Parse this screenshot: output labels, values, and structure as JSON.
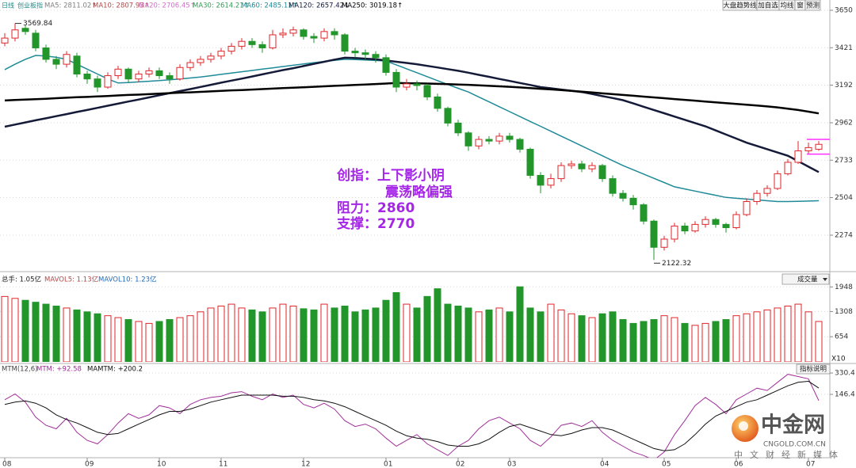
{
  "chart_data": [
    {
      "type": "candlestick",
      "period": "日线",
      "title": "创业板指",
      "series": [
        {
          "name": "MA5: 2811.02↑",
          "color": "#808080"
        },
        {
          "name": "MA10: 2807.93↑",
          "color": "#b04a4a"
        },
        {
          "name": "MA20: 2706.45↑",
          "color": "#d070c8"
        },
        {
          "name": "MA30: 2614.21↑",
          "color": "#3a9a5a"
        },
        {
          "name": "MA60: 2485.11↑",
          "color": "#1f8a98",
          "line_width": 1.5,
          "values": [
            3287,
            3320,
            3350,
            3374,
            3370,
            3362,
            3350,
            3320,
            3290,
            3260,
            3230,
            3205,
            3208,
            3212,
            3216,
            3220,
            3225,
            3230,
            3236,
            3242,
            3250,
            3258,
            3266,
            3274,
            3282,
            3290,
            3298,
            3306,
            3314,
            3322,
            3330,
            3337,
            3344,
            3350,
            3348,
            3346,
            3343,
            3340,
            3316,
            3292,
            3268,
            3244,
            3220,
            3196,
            3173,
            3150,
            3120,
            3090,
            3060,
            3030,
            3000,
            2970,
            2940,
            2910,
            2880,
            2850,
            2820,
            2790,
            2760,
            2730,
            2700,
            2674,
            2648,
            2622,
            2596,
            2570,
            2557,
            2544,
            2531,
            2518,
            2505,
            2500,
            2495,
            2490,
            2485,
            2480,
            2480,
            2481,
            2483,
            2485
          ]
        },
        {
          "name": "MA120: 2657.42↓",
          "color": "#141a38",
          "line_width": 2.5,
          "values": [
            2938,
            2951,
            2964,
            2977,
            2989,
            3002,
            3015,
            3028,
            3040,
            3053,
            3066,
            3079,
            3092,
            3104,
            3117,
            3130,
            3143,
            3156,
            3168,
            3181,
            3194,
            3207,
            3220,
            3232,
            3245,
            3258,
            3271,
            3284,
            3296,
            3309,
            3322,
            3335,
            3348,
            3360,
            3358,
            3354,
            3350,
            3343,
            3335,
            3328,
            3320,
            3310,
            3300,
            3290,
            3280,
            3268,
            3255,
            3243,
            3230,
            3218,
            3205,
            3193,
            3180,
            3173,
            3165,
            3158,
            3150,
            3138,
            3125,
            3113,
            3100,
            3080,
            3060,
            3040,
            3020,
            3000,
            2980,
            2960,
            2940,
            2915,
            2890,
            2865,
            2840,
            2820,
            2800,
            2780,
            2760,
            2727,
            2693,
            2660
          ]
        },
        {
          "name": "MA250: 3019.18↑",
          "color": "#000000",
          "line_width": 2.5,
          "values": [
            3098,
            3101,
            3104,
            3106,
            3109,
            3112,
            3115,
            3118,
            3120,
            3123,
            3126,
            3129,
            3132,
            3134,
            3137,
            3140,
            3143,
            3146,
            3148,
            3151,
            3154,
            3157,
            3160,
            3162,
            3165,
            3168,
            3171,
            3174,
            3176,
            3179,
            3182,
            3185,
            3188,
            3190,
            3193,
            3196,
            3199,
            3202,
            3205,
            3204,
            3203,
            3202,
            3200,
            3198,
            3196,
            3194,
            3191,
            3188,
            3185,
            3182,
            3178,
            3174,
            3170,
            3166,
            3162,
            3157,
            3152,
            3147,
            3142,
            3137,
            3132,
            3127,
            3122,
            3117,
            3112,
            3107,
            3102,
            3097,
            3092,
            3087,
            3082,
            3077,
            3072,
            3067,
            3062,
            3056,
            3048,
            3040,
            3030,
            3019
          ]
        }
      ],
      "categories": [
        "08",
        null,
        null,
        null,
        null,
        null,
        null,
        null,
        "09",
        null,
        null,
        null,
        null,
        null,
        null,
        "10",
        null,
        null,
        null,
        null,
        null,
        "11",
        null,
        null,
        null,
        null,
        null,
        null,
        null,
        "12",
        null,
        null,
        null,
        null,
        null,
        null,
        null,
        "01",
        null,
        null,
        null,
        null,
        null,
        null,
        "02",
        null,
        null,
        null,
        null,
        "03",
        null,
        null,
        null,
        null,
        null,
        null,
        null,
        null,
        "04",
        null,
        null,
        null,
        null,
        null,
        "05",
        null,
        null,
        null,
        null,
        null,
        null,
        "06",
        null,
        null,
        null,
        null,
        null,
        null,
        "07",
        null
      ],
      "open": [
        3450,
        3480,
        3540,
        3510,
        3420,
        3350,
        3320,
        3370,
        3260,
        3230,
        3180,
        3250,
        3290,
        3230,
        3260,
        3280,
        3250,
        3230,
        3300,
        3330,
        3350,
        3370,
        3400,
        3430,
        3460,
        3440,
        3420,
        3500,
        3510,
        3530,
        3490,
        3480,
        3520,
        3500,
        3400,
        3390,
        3380,
        3360,
        3270,
        3180,
        3200,
        3190,
        3120,
        3050,
        2960,
        2900,
        2820,
        2860,
        2850,
        2880,
        2860,
        2800,
        2640,
        2580,
        2620,
        2700,
        2710,
        2680,
        2700,
        2620,
        2530,
        2500,
        2460,
        2360,
        2200,
        2250,
        2330,
        2300,
        2340,
        2370,
        2340,
        2320,
        2400,
        2480,
        2530,
        2560,
        2650,
        2720,
        2790,
        2800
      ],
      "high": [
        3510,
        3569.84,
        3560,
        3530,
        3440,
        3370,
        3400,
        3390,
        3280,
        3250,
        3270,
        3310,
        3300,
        3280,
        3300,
        3300,
        3270,
        3320,
        3350,
        3370,
        3390,
        3420,
        3450,
        3480,
        3480,
        3460,
        3530,
        3540,
        3550,
        3540,
        3510,
        3540,
        3540,
        3510,
        3420,
        3410,
        3400,
        3380,
        3290,
        3230,
        3220,
        3200,
        3140,
        3060,
        2980,
        2910,
        2880,
        2880,
        2900,
        2900,
        2870,
        2810,
        2660,
        2650,
        2720,
        2730,
        2730,
        2720,
        2710,
        2640,
        2550,
        2520,
        2470,
        2370,
        2270,
        2350,
        2350,
        2360,
        2390,
        2380,
        2350,
        2420,
        2500,
        2550,
        2580,
        2670,
        2740,
        2850,
        2840,
        2850
      ],
      "low": [
        3430,
        3460,
        3500,
        3400,
        3330,
        3290,
        3300,
        3240,
        3200,
        3150,
        3170,
        3230,
        3210,
        3210,
        3240,
        3230,
        3200,
        3220,
        3280,
        3310,
        3330,
        3350,
        3380,
        3410,
        3420,
        3390,
        3410,
        3480,
        3490,
        3470,
        3450,
        3460,
        3470,
        3380,
        3360,
        3350,
        3330,
        3250,
        3150,
        3160,
        3160,
        3100,
        3030,
        2940,
        2880,
        2790,
        2800,
        2830,
        2830,
        2840,
        2780,
        2620,
        2530,
        2560,
        2600,
        2680,
        2660,
        2660,
        2600,
        2510,
        2480,
        2430,
        2340,
        2122.32,
        2180,
        2230,
        2280,
        2290,
        2320,
        2320,
        2290,
        2310,
        2390,
        2460,
        2510,
        2550,
        2640,
        2710,
        2770,
        2790
      ],
      "close": [
        3480,
        3530,
        3520,
        3420,
        3350,
        3320,
        3380,
        3260,
        3230,
        3180,
        3250,
        3290,
        3230,
        3260,
        3280,
        3250,
        3230,
        3300,
        3330,
        3350,
        3370,
        3400,
        3430,
        3460,
        3440,
        3420,
        3500,
        3510,
        3530,
        3490,
        3480,
        3520,
        3500,
        3400,
        3390,
        3380,
        3360,
        3270,
        3180,
        3200,
        3190,
        3120,
        3050,
        2960,
        2900,
        2820,
        2860,
        2850,
        2880,
        2860,
        2800,
        2640,
        2580,
        2620,
        2700,
        2710,
        2680,
        2700,
        2620,
        2530,
        2500,
        2460,
        2360,
        2200,
        2250,
        2330,
        2300,
        2340,
        2370,
        2340,
        2320,
        2400,
        2480,
        2530,
        2560,
        2650,
        2720,
        2790,
        2810,
        2830
      ],
      "extreme_labels": {
        "high": "3569.84",
        "low": "2122.32"
      },
      "up_color": "#e0262a",
      "down_color": "#22962a",
      "ylim": [
        2056,
        3713
      ],
      "yticks": [
        2274,
        2504,
        2733,
        2962,
        3192,
        3421,
        3650
      ],
      "grid": true,
      "commentary": [
        "创指：上下影小阴",
        "震荡略偏强"
      ],
      "levels": [
        {
          "label": "阻力：2860",
          "value": 2860
        },
        {
          "label": "支撑：2770",
          "value": 2770
        }
      ],
      "commentary_color": "#a626e8",
      "level_color": "#ff30ff",
      "buttons": [
        "大盘趋势线",
        "加自选",
        "均线",
        "窗",
        "预测"
      ]
    },
    {
      "type": "bar",
      "header": [
        "总手: 1.05亿",
        "MAVOL5: 1.13亿",
        "MAVOL10: 1.23亿"
      ],
      "indicator": "成交量",
      "unit_label": "X10",
      "values": [
        1700,
        1650,
        1600,
        1550,
        1500,
        1450,
        1400,
        1350,
        1300,
        1250,
        1200,
        1150,
        1100,
        1050,
        1000,
        1050,
        1100,
        1150,
        1200,
        1300,
        1400,
        1450,
        1500,
        1400,
        1350,
        1300,
        1400,
        1500,
        1450,
        1380,
        1350,
        1500,
        1400,
        1450,
        1300,
        1350,
        1400,
        1600,
        1800,
        1500,
        1400,
        1700,
        1900,
        1500,
        1450,
        1400,
        1300,
        1350,
        1400,
        1300,
        1950,
        1400,
        1300,
        1500,
        1350,
        1250,
        1200,
        1150,
        1250,
        1300,
        1100,
        1000,
        1050,
        1100,
        1200,
        1150,
        1000,
        950,
        1000,
        1050,
        1100,
        1200,
        1250,
        1300,
        1350,
        1400,
        1450,
        1500,
        1300,
        1050
      ],
      "ylim": [
        0,
        2304
      ],
      "yticks": [
        654,
        1308,
        1948
      ],
      "grid": true
    },
    {
      "type": "line",
      "title": "MTM(12,6)",
      "button": "指标说明",
      "series": [
        {
          "name": "MTM: +92.58",
          "color": "#a0309a",
          "values": [
            100,
            150,
            80,
            -50,
            -120,
            -150,
            -60,
            -180,
            -250,
            -280,
            -200,
            -100,
            -20,
            -60,
            -30,
            50,
            30,
            -20,
            60,
            100,
            120,
            130,
            160,
            170,
            130,
            100,
            150,
            120,
            140,
            60,
            30,
            70,
            20,
            -80,
            -130,
            -110,
            -150,
            -230,
            -300,
            -250,
            -200,
            -280,
            -330,
            -380,
            -300,
            -250,
            -150,
            -80,
            -50,
            -100,
            -150,
            -250,
            -300,
            -220,
            -120,
            -100,
            -130,
            -80,
            -180,
            -250,
            -300,
            -350,
            -380,
            -420,
            -350,
            -200,
            -80,
            50,
            120,
            60,
            -20,
            100,
            150,
            200,
            180,
            250,
            320,
            300,
            280,
            92.58
          ]
        },
        {
          "name": "MAMTM: +200.2",
          "color": "#111111",
          "values": [
            60,
            80,
            90,
            70,
            30,
            -30,
            -70,
            -100,
            -140,
            -180,
            -200,
            -190,
            -150,
            -110,
            -70,
            -30,
            0,
            0,
            20,
            50,
            80,
            100,
            120,
            140,
            140,
            140,
            140,
            130,
            130,
            120,
            100,
            90,
            70,
            40,
            0,
            -40,
            -80,
            -120,
            -170,
            -210,
            -230,
            -240,
            -260,
            -290,
            -300,
            -300,
            -280,
            -240,
            -180,
            -130,
            -110,
            -140,
            -170,
            -200,
            -210,
            -190,
            -160,
            -140,
            -140,
            -160,
            -200,
            -240,
            -280,
            -320,
            -340,
            -330,
            -280,
            -200,
            -110,
            -40,
            0,
            40,
            80,
            100,
            140,
            180,
            220,
            250,
            260,
            200.2
          ]
        }
      ],
      "ylim": [
        -399,
        392
      ],
      "yticks": [
        146.4,
        330.4
      ],
      "grid": true
    }
  ],
  "watermark": {
    "brand": "中金网",
    "domain": "CNGOLD.COM.CN",
    "slogan": "中文财经新媒体"
  }
}
